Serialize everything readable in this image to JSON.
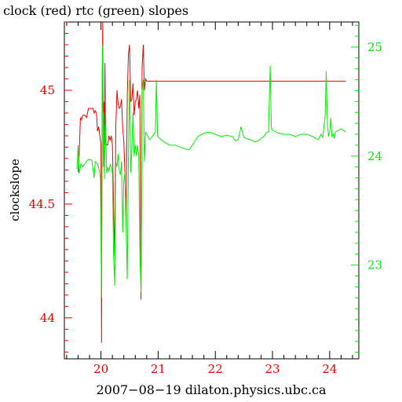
{
  "chart_data": {
    "type": "line",
    "title": "clock (red) rtc (green) slopes",
    "xlabel": "2007−08−19 dilaton.physics.ubc.ca",
    "ylabel_left": "clockslope",
    "ylabel_right": "",
    "grid": false,
    "legend": "none",
    "x_ticks": [
      20,
      21,
      22,
      23,
      24
    ],
    "xlim": [
      19.36,
      24.51
    ],
    "ylim_left": [
      43.82,
      45.3
    ],
    "ylim_right": [
      22.14,
      25.23
    ],
    "y_ticks_left": [
      44,
      44.5,
      45
    ],
    "y_ticks_left_labels": [
      "44",
      "44.5",
      "45"
    ],
    "y_ticks_right": [
      23,
      24,
      25
    ],
    "y_ticks_right_labels": [
      "23",
      "24",
      "25"
    ],
    "colors": {
      "axis": "#000000",
      "clock": "#ee0000",
      "rtc": "#00ee00"
    },
    "series": [
      {
        "name": "clock",
        "axis": "left",
        "color": "#ee0000",
        "points": [
          [
            19.6,
            44.64
          ],
          [
            19.62,
            44.72
          ],
          [
            19.64,
            44.88
          ],
          [
            19.66,
            44.87
          ],
          [
            19.68,
            44.89
          ],
          [
            19.72,
            44.89
          ],
          [
            19.75,
            44.88
          ],
          [
            19.78,
            44.92
          ],
          [
            19.82,
            44.92
          ],
          [
            19.86,
            44.92
          ],
          [
            19.88,
            44.9
          ],
          [
            19.9,
            44.91
          ],
          [
            19.92,
            44.9
          ],
          [
            19.94,
            44.82
          ],
          [
            19.96,
            44.84
          ],
          [
            19.98,
            44.8
          ],
          [
            20.0,
            44.76
          ],
          [
            20.01,
            43.89
          ],
          [
            20.02,
            44.92
          ],
          [
            20.03,
            45.3
          ],
          [
            20.04,
            44.87
          ],
          [
            20.05,
            44.95
          ],
          [
            20.06,
            44.76
          ],
          [
            20.07,
            45.12
          ],
          [
            20.08,
            44.77
          ],
          [
            20.1,
            44.76
          ],
          [
            20.12,
            44.76
          ],
          [
            20.14,
            44.8
          ],
          [
            20.16,
            44.78
          ],
          [
            20.18,
            44.8
          ],
          [
            20.2,
            44.76
          ],
          [
            20.22,
            44.5
          ],
          [
            20.24,
            44.27
          ],
          [
            20.26,
            44.84
          ],
          [
            20.28,
            45.0
          ],
          [
            20.3,
            44.94
          ],
          [
            20.32,
            44.92
          ],
          [
            20.34,
            44.93
          ],
          [
            20.36,
            44.96
          ],
          [
            20.38,
            44.83
          ],
          [
            20.4,
            44.78
          ],
          [
            20.42,
            44.62
          ],
          [
            20.44,
            44.43
          ],
          [
            20.46,
            44.98
          ],
          [
            20.48,
            45.16
          ],
          [
            20.5,
            45.2
          ],
          [
            20.52,
            44.95
          ],
          [
            20.54,
            44.96
          ],
          [
            20.56,
            45.03
          ],
          [
            20.58,
            44.89
          ],
          [
            20.6,
            44.95
          ],
          [
            20.62,
            44.96
          ],
          [
            20.64,
            45.0
          ],
          [
            20.66,
            44.92
          ],
          [
            20.68,
            44.98
          ],
          [
            20.7,
            44.08
          ],
          [
            20.72,
            45.1
          ],
          [
            20.74,
            45.2
          ],
          [
            20.76,
            45.0
          ],
          [
            20.78,
            45.05
          ],
          [
            20.8,
            45.04
          ],
          [
            24.28,
            45.04
          ]
        ]
      },
      {
        "name": "rtc",
        "axis": "right",
        "color": "#00ee00",
        "points": [
          [
            19.58,
            23.88
          ],
          [
            19.6,
            24.1
          ],
          [
            19.62,
            23.84
          ],
          [
            19.65,
            23.93
          ],
          [
            19.68,
            23.9
          ],
          [
            19.72,
            23.93
          ],
          [
            19.76,
            23.96
          ],
          [
            19.8,
            23.97
          ],
          [
            19.84,
            23.96
          ],
          [
            19.88,
            23.8
          ],
          [
            19.9,
            23.95
          ],
          [
            19.94,
            23.93
          ],
          [
            19.97,
            23.87
          ],
          [
            19.99,
            23.8
          ],
          [
            20.01,
            22.7
          ],
          [
            20.02,
            24.78
          ],
          [
            20.03,
            25.02
          ],
          [
            20.04,
            23.9
          ],
          [
            20.05,
            24.4
          ],
          [
            20.06,
            23.79
          ],
          [
            20.08,
            24.28
          ],
          [
            20.1,
            23.84
          ],
          [
            20.12,
            23.9
          ],
          [
            20.14,
            23.86
          ],
          [
            20.16,
            23.92
          ],
          [
            20.18,
            23.9
          ],
          [
            20.2,
            23.84
          ],
          [
            20.22,
            23.1
          ],
          [
            20.24,
            22.81
          ],
          [
            20.26,
            23.95
          ],
          [
            20.28,
            23.9
          ],
          [
            20.3,
            24.02
          ],
          [
            20.32,
            23.86
          ],
          [
            20.34,
            23.83
          ],
          [
            20.36,
            23.95
          ],
          [
            20.38,
            23.3
          ],
          [
            20.4,
            23.78
          ],
          [
            20.42,
            23.85
          ],
          [
            20.44,
            23.35
          ],
          [
            20.46,
            22.87
          ],
          [
            20.48,
            24.02
          ],
          [
            20.5,
            24.7
          ],
          [
            20.52,
            23.85
          ],
          [
            20.54,
            24.05
          ],
          [
            20.56,
            24.4
          ],
          [
            20.58,
            24.0
          ],
          [
            20.6,
            24.1
          ],
          [
            20.62,
            24.0
          ],
          [
            20.64,
            24.1
          ],
          [
            20.66,
            24.0
          ],
          [
            20.68,
            23.1
          ],
          [
            20.7,
            22.75
          ],
          [
            20.72,
            24.6
          ],
          [
            20.74,
            24.7
          ],
          [
            20.76,
            23.95
          ],
          [
            20.78,
            24.22
          ],
          [
            20.8,
            24.2
          ],
          [
            20.85,
            24.15
          ],
          [
            20.9,
            24.18
          ],
          [
            20.95,
            24.22
          ],
          [
            20.97,
            24.7
          ],
          [
            20.99,
            24.18
          ],
          [
            21.05,
            24.15
          ],
          [
            21.1,
            24.13
          ],
          [
            21.2,
            24.1
          ],
          [
            21.3,
            24.1
          ],
          [
            21.4,
            24.08
          ],
          [
            21.5,
            24.06
          ],
          [
            21.55,
            24.06
          ],
          [
            21.62,
            24.12
          ],
          [
            21.7,
            24.18
          ],
          [
            21.8,
            24.21
          ],
          [
            21.9,
            24.22
          ],
          [
            22.0,
            24.2
          ],
          [
            22.1,
            24.18
          ],
          [
            22.2,
            24.19
          ],
          [
            22.3,
            24.18
          ],
          [
            22.35,
            24.14
          ],
          [
            22.4,
            24.15
          ],
          [
            22.45,
            24.27
          ],
          [
            22.5,
            24.17
          ],
          [
            22.6,
            24.15
          ],
          [
            22.7,
            24.13
          ],
          [
            22.75,
            24.14
          ],
          [
            22.8,
            24.16
          ],
          [
            22.85,
            24.18
          ],
          [
            22.9,
            24.22
          ],
          [
            22.93,
            24.22
          ],
          [
            22.96,
            24.83
          ],
          [
            22.98,
            24.26
          ],
          [
            23.0,
            24.24
          ],
          [
            23.1,
            24.21
          ],
          [
            23.2,
            24.2
          ],
          [
            23.3,
            24.2
          ],
          [
            23.4,
            24.18
          ],
          [
            23.5,
            24.2
          ],
          [
            23.6,
            24.2
          ],
          [
            23.7,
            24.18
          ],
          [
            23.8,
            24.15
          ],
          [
            23.85,
            24.2
          ],
          [
            23.88,
            24.17
          ],
          [
            23.9,
            24.28
          ],
          [
            23.92,
            24.35
          ],
          [
            23.94,
            24.78
          ],
          [
            23.96,
            24.3
          ],
          [
            23.98,
            24.18
          ],
          [
            24.0,
            24.22
          ],
          [
            24.02,
            24.35
          ],
          [
            24.04,
            24.18
          ],
          [
            24.06,
            24.2
          ],
          [
            24.08,
            24.16
          ],
          [
            24.1,
            24.22
          ],
          [
            24.2,
            24.25
          ],
          [
            24.28,
            24.22
          ]
        ]
      }
    ]
  }
}
